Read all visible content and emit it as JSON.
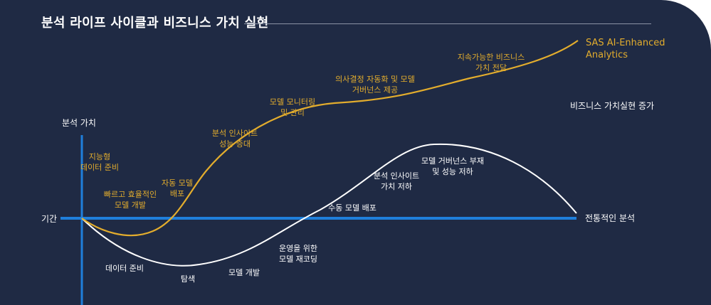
{
  "title": "분석 라이프 사이클과 비즈니스 가치 실현",
  "axes": {
    "y_label": "분석 가치",
    "x_label": "기간"
  },
  "series": {
    "sas": {
      "name_line1": "SAS AI-Enhanced",
      "name_line2": "Analytics",
      "color": "#e3ad2d"
    },
    "sas_note": "비즈니스 가치실현 증가",
    "traditional": {
      "name": "전통적인 분석",
      "color": "#ffffff"
    }
  },
  "baseline_color": "#1f7fdb",
  "sas_stages": [
    {
      "line1": "지능형",
      "line2": "데이터 준비"
    },
    {
      "line1": "빠르고 효율적인",
      "line2": "모델 개발"
    },
    {
      "line1": "자동 모델",
      "line2": "배포"
    },
    {
      "line1": "분석 인사이트",
      "line2": "성능 증대"
    },
    {
      "line1": "모델 모니터링",
      "line2": "및 관리"
    },
    {
      "line1": "의사결정 자동화 및 모델",
      "line2": "거버넌스 제공"
    },
    {
      "line1": "지속가능한 비즈니스",
      "line2": "가치 전달"
    }
  ],
  "traditional_stages": [
    {
      "line1": "데이터 준비",
      "line2": ""
    },
    {
      "line1": "탐색",
      "line2": ""
    },
    {
      "line1": "모델 개발",
      "line2": ""
    },
    {
      "line1": "운영을 위한",
      "line2": "모델 재코딩"
    },
    {
      "line1": "수동  모델 배포",
      "line2": ""
    },
    {
      "line1": "분석 인사이트",
      "line2": "가치 저하"
    },
    {
      "line1": "모델 거버넌스 부재",
      "line2": "및 성능 저하"
    }
  ]
}
